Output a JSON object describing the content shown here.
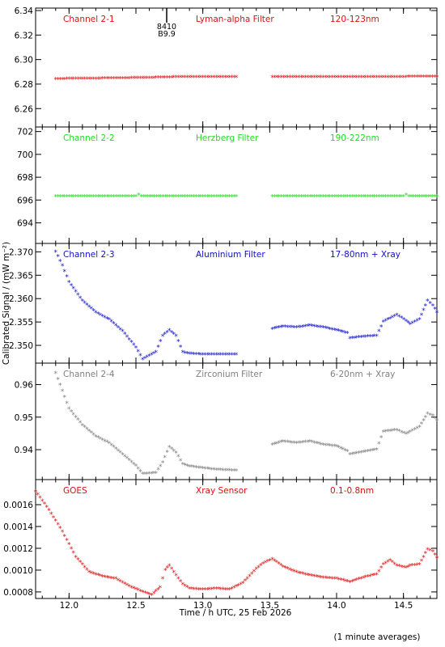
{
  "chart_data": {
    "type": "scatter",
    "xlabel": "Time / h UTC, 25 Feb 2026",
    "ylabel": "Calibrated Signal / (mW m⁻²)",
    "footnote": "(1 minute averages)",
    "xlim": [
      11.75,
      14.75
    ],
    "x_ticks": [
      12.0,
      12.5,
      13.0,
      13.5,
      14.0,
      14.5
    ],
    "x_tick_labels": [
      "12.0",
      "12.5",
      "13.0",
      "13.5",
      "14.0",
      "14.5"
    ],
    "panels": [
      {
        "id": "ch2-1",
        "channel": "Channel 2-1",
        "filter": "Lyman-alpha Filter",
        "band": "120-123nm",
        "color": "#dd1010",
        "ylim": [
          6.245,
          6.342
        ],
        "y_ticks": [
          6.26,
          6.28,
          6.3,
          6.32,
          6.34
        ],
        "y_tick_labels": [
          "6.26",
          "6.28",
          "6.30",
          "6.32",
          "6.34"
        ],
        "annotation": {
          "x": 12.73,
          "labels": [
            "8410",
            "B9.9"
          ]
        },
        "series": [
          {
            "x": [
              11.9,
              12.3,
              12.6,
              12.8,
              13.25
            ],
            "y": [
              6.284,
              6.2845,
              6.285,
              6.2855,
              6.2855
            ]
          },
          {
            "x": [
              13.52,
              13.9,
              14.3,
              14.75
            ],
            "y": [
              6.2855,
              6.2855,
              6.2855,
              6.286
            ]
          }
        ]
      },
      {
        "id": "ch2-2",
        "channel": "Channel 2-2",
        "filter": "Herzberg Filter",
        "band": "190-222nm",
        "color": "#22dd22",
        "ylim": [
          692.2,
          702.4
        ],
        "y_ticks": [
          694,
          696,
          698,
          700,
          702
        ],
        "y_tick_labels": [
          "694",
          "696",
          "698",
          "700",
          "702"
        ],
        "series": [
          {
            "x": [
              11.9,
              12.3,
              12.5,
              12.52,
              12.54,
              12.8,
              13.25
            ],
            "y": [
              696.3,
              696.3,
              696.3,
              696.45,
              696.3,
              696.3,
              696.3
            ]
          },
          {
            "x": [
              13.52,
              14.0,
              14.5,
              14.52,
              14.54,
              14.75
            ],
            "y": [
              696.3,
              696.3,
              696.3,
              696.45,
              696.3,
              696.3
            ]
          }
        ]
      },
      {
        "id": "ch2-3",
        "channel": "Channel 2-3",
        "filter": "Aluminium Filter",
        "band": "17-80nm + Xray",
        "color": "#1010cc",
        "ylim": [
          2.3462,
          2.3718
        ],
        "y_ticks": [
          2.35,
          2.355,
          2.36,
          2.365,
          2.37
        ],
        "y_tick_labels": [
          "2.350",
          "2.355",
          "2.360",
          "2.365",
          "2.370"
        ],
        "series": [
          {
            "x": [
              11.9,
              11.95,
              12.0,
              12.1,
              12.2,
              12.3,
              12.4,
              12.5,
              12.55,
              12.65,
              12.7,
              12.75,
              12.8,
              12.85,
              12.9,
              13.0,
              13.1,
              13.25
            ],
            "y": [
              2.37,
              2.367,
              2.3635,
              2.3595,
              2.357,
              2.3555,
              2.353,
              2.3495,
              2.347,
              2.3485,
              2.352,
              2.3532,
              2.352,
              2.3485,
              2.3482,
              2.348,
              2.348,
              2.348
            ]
          },
          {
            "x": [
              13.52,
              13.6,
              13.7,
              13.8,
              13.9,
              14.0,
              14.08,
              14.1,
              14.2,
              14.3,
              14.35,
              14.45,
              14.52,
              14.55,
              14.62,
              14.68,
              14.72,
              14.75
            ],
            "y": [
              2.3535,
              2.354,
              2.3538,
              2.3542,
              2.3538,
              2.3532,
              2.3526,
              2.3515,
              2.3518,
              2.352,
              2.355,
              2.3565,
              2.3552,
              2.3545,
              2.3555,
              2.3595,
              2.3585,
              2.357
            ]
          }
        ]
      },
      {
        "id": "ch2-4",
        "channel": "Channel 2-4",
        "filter": "Zirconium Filter",
        "band": "6-20nm + Xray",
        "color": "#808080",
        "ylim": [
          0.9308,
          0.9666
        ],
        "y_ticks": [
          0.94,
          0.95,
          0.96
        ],
        "y_tick_labels": [
          "0.94",
          "0.95",
          "0.96"
        ],
        "series": [
          {
            "x": [
              11.9,
              11.95,
              12.0,
              12.1,
              12.2,
              12.3,
              12.4,
              12.5,
              12.55,
              12.65,
              12.7,
              12.75,
              12.8,
              12.85,
              12.9,
              13.0,
              13.1,
              13.25
            ],
            "y": [
              0.9635,
              0.958,
              0.9525,
              0.9475,
              0.944,
              0.942,
              0.9385,
              0.935,
              0.9325,
              0.9328,
              0.936,
              0.9408,
              0.939,
              0.9355,
              0.9348,
              0.9343,
              0.9338,
              0.9335
            ]
          },
          {
            "x": [
              13.52,
              13.6,
              13.7,
              13.8,
              13.9,
              14.0,
              14.08,
              14.1,
              14.2,
              14.3,
              14.35,
              14.45,
              14.52,
              14.55,
              14.62,
              14.68,
              14.72,
              14.75
            ],
            "y": [
              0.9415,
              0.9425,
              0.942,
              0.9425,
              0.9415,
              0.941,
              0.9395,
              0.9385,
              0.9393,
              0.94,
              0.9455,
              0.946,
              0.9448,
              0.9455,
              0.947,
              0.951,
              0.9505,
              0.949
            ]
          }
        ]
      },
      {
        "id": "goes",
        "channel": "GOES",
        "filter": "Xray Sensor",
        "band": "0.1-0.8nm",
        "color": "#dd1010",
        "ylim": [
          0.00074,
          0.00183
        ],
        "y_ticks": [
          0.0008,
          0.001,
          0.0012,
          0.0014,
          0.0016
        ],
        "y_tick_labels": [
          "0.0008",
          "0.0010",
          "0.0012",
          "0.0014",
          "0.0016"
        ],
        "series": [
          {
            "x": [
              11.75,
              11.85,
              11.95,
              12.05,
              12.15,
              12.25,
              12.35,
              12.45,
              12.55,
              12.62,
              12.68,
              12.72,
              12.75,
              12.8,
              12.85,
              12.9,
              13.0,
              13.1,
              13.2,
              13.3,
              13.4,
              13.45,
              13.52,
              13.6,
              13.7,
              13.8,
              13.9,
              14.0,
              14.1,
              14.2,
              14.3,
              14.35,
              14.4,
              14.45,
              14.52,
              14.55,
              14.62,
              14.68,
              14.72,
              14.75
            ],
            "y": [
              0.00172,
              0.00155,
              0.00135,
              0.00112,
              0.00098,
              0.00094,
              0.00092,
              0.00085,
              0.0008,
              0.00077,
              0.00084,
              0.001,
              0.00104,
              0.00095,
              0.00087,
              0.00083,
              0.00082,
              0.00083,
              0.00082,
              0.00088,
              0.00101,
              0.00106,
              0.0011,
              0.00103,
              0.00098,
              0.00095,
              0.00093,
              0.00092,
              0.00089,
              0.00093,
              0.00096,
              0.00105,
              0.00109,
              0.00104,
              0.00102,
              0.00104,
              0.00105,
              0.00119,
              0.00117,
              0.00111
            ]
          }
        ]
      }
    ]
  }
}
